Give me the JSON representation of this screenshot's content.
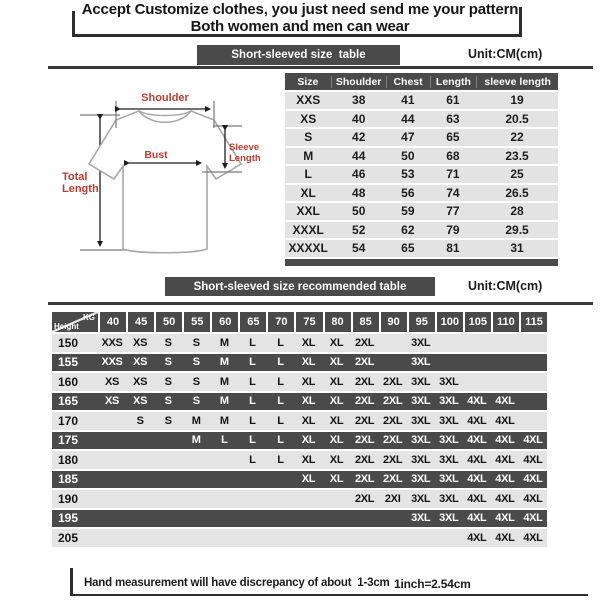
{
  "header": {
    "title_line1": "Accept Customize clothes, you just need send me your pattern",
    "title_line2": "Both women and men can wear"
  },
  "section1": {
    "bar_label": "Short-sleeved size  table",
    "unit_label": "Unit:CM(cm)"
  },
  "section2": {
    "bar_label": "Short-sleeved size recommended table",
    "unit_label": "Unit:CM(cm)"
  },
  "diagram": {
    "labels": {
      "shoulder": "Shoulder",
      "bust": "Bust",
      "total_length": [
        "Total",
        "Length"
      ],
      "sleeve_length": [
        "Sleeve",
        "Length"
      ]
    },
    "label_color": "#c13b2e",
    "outline_color": "#a8a8a8"
  },
  "size_table": {
    "columns": [
      "Size",
      "Shoulder",
      "Chest",
      "Length",
      "sleeve length"
    ],
    "rows": [
      [
        "XXS",
        "38",
        "41",
        "61",
        "19"
      ],
      [
        "XS",
        "40",
        "44",
        "63",
        "20.5"
      ],
      [
        "S",
        "42",
        "47",
        "65",
        "22"
      ],
      [
        "M",
        "44",
        "50",
        "68",
        "23.5"
      ],
      [
        "L",
        "46",
        "53",
        "71",
        "25"
      ],
      [
        "XL",
        "48",
        "56",
        "74",
        "26.5"
      ],
      [
        "XXL",
        "50",
        "59",
        "77",
        "28"
      ],
      [
        "XXXL",
        "52",
        "62",
        "79",
        "29.5"
      ],
      [
        "XXXXL",
        "54",
        "65",
        "81",
        "31"
      ]
    ]
  },
  "recommended_table": {
    "corner": {
      "top_right": "KG",
      "bottom_left": "Height"
    },
    "weight_columns": [
      "40",
      "45",
      "50",
      "55",
      "60",
      "65",
      "70",
      "75",
      "80",
      "85",
      "90",
      "95",
      "100",
      "105",
      "110",
      "115"
    ],
    "rows": [
      {
        "height": "150",
        "cells": [
          "XXS",
          "XS",
          "S",
          "S",
          "M",
          "L",
          "L",
          "XL",
          "XL",
          "2XL",
          "",
          "3XL",
          "",
          "",
          "",
          ""
        ]
      },
      {
        "height": "155",
        "cells": [
          "XXS",
          "XS",
          "S",
          "S",
          "M",
          "L",
          "L",
          "XL",
          "XL",
          "2XL",
          "",
          "3XL",
          "",
          "",
          "",
          ""
        ]
      },
      {
        "height": "160",
        "cells": [
          "XS",
          "XS",
          "S",
          "S",
          "M",
          "L",
          "L",
          "XL",
          "XL",
          "2XL",
          "2XL",
          "3XL",
          "3XL",
          "",
          "",
          ""
        ]
      },
      {
        "height": "165",
        "cells": [
          "XS",
          "XS",
          "S",
          "S",
          "M",
          "L",
          "L",
          "XL",
          "XL",
          "2XL",
          "2XL",
          "3XL",
          "3XL",
          "4XL",
          "4XL",
          ""
        ]
      },
      {
        "height": "170",
        "cells": [
          "",
          "S",
          "S",
          "M",
          "M",
          "L",
          "L",
          "XL",
          "XL",
          "2XL",
          "2XL",
          "3XL",
          "3XL",
          "4XL",
          "4XL",
          ""
        ]
      },
      {
        "height": "175",
        "cells": [
          "",
          "",
          "",
          "M",
          "L",
          "L",
          "L",
          "XL",
          "XL",
          "2XL",
          "2XL",
          "3XL",
          "3XL",
          "4XL",
          "4XL",
          "4XL"
        ]
      },
      {
        "height": "180",
        "cells": [
          "",
          "",
          "",
          "",
          "",
          "L",
          "L",
          "XL",
          "XL",
          "2XL",
          "2XL",
          "3XL",
          "3XL",
          "4XL",
          "4XL",
          "4XL"
        ]
      },
      {
        "height": "185",
        "cells": [
          "",
          "",
          "",
          "",
          "",
          "",
          "",
          "XL",
          "XL",
          "2XL",
          "2XL",
          "3XL",
          "3XL",
          "4XL",
          "4XL",
          "4XL"
        ]
      },
      {
        "height": "190",
        "cells": [
          "",
          "",
          "",
          "",
          "",
          "",
          "",
          "",
          "",
          "2XL",
          "2XI",
          "3XL",
          "3XL",
          "4XL",
          "4XL",
          "4XL"
        ]
      },
      {
        "height": "195",
        "cells": [
          "",
          "",
          "",
          "",
          "",
          "",
          "",
          "",
          "",
          "",
          "",
          "3XL",
          "3XL",
          "4XL",
          "4XL",
          "4XL"
        ]
      },
      {
        "height": "205",
        "cells": [
          "",
          "",
          "",
          "",
          "",
          "",
          "",
          "",
          "",
          "",
          "",
          "",
          "",
          "4XL",
          "4XL",
          "4XL"
        ]
      }
    ]
  },
  "footer": {
    "note": "Hand measurement will have discrepancy of about  1-3cm",
    "conversion": "1inch=2.54cm"
  },
  "colors": {
    "dark": "#4a4a4a",
    "light_stripe": "#e4e4e4",
    "accent_red": "#c13b2e"
  }
}
